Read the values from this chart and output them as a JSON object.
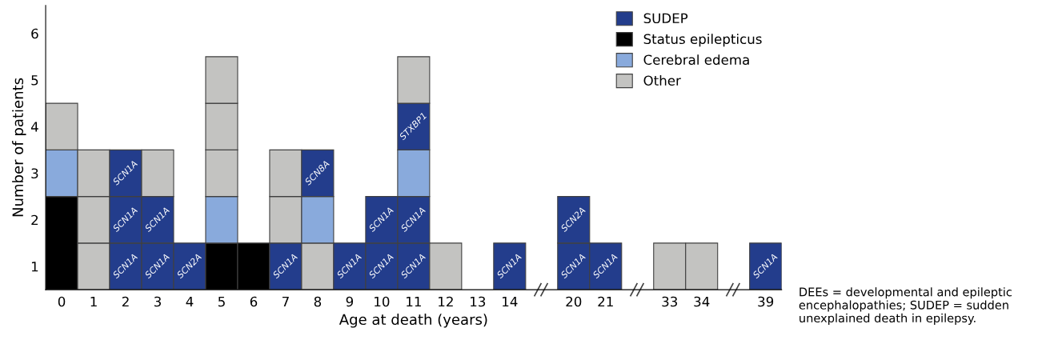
{
  "chart_data": {
    "type": "bar",
    "stacked": true,
    "xlabel": "Age at death (years)",
    "ylabel": "Number of patients",
    "categories": [
      "0",
      "1",
      "2",
      "3",
      "4",
      "5",
      "6",
      "7",
      "8",
      "9",
      "10",
      "11",
      "12",
      "13",
      "14",
      null,
      "20",
      "21",
      null,
      "33",
      "34",
      null,
      "39"
    ],
    "ylim": [
      0,
      6.1
    ],
    "yticks": [
      {
        "value": 0.5,
        "label": "1"
      },
      {
        "value": 1.5,
        "label": "2"
      },
      {
        "value": 2.5,
        "label": "3"
      },
      {
        "value": 3.5,
        "label": "4"
      },
      {
        "value": 4.5,
        "label": "5"
      },
      {
        "value": 5.5,
        "label": "6"
      }
    ],
    "grid": false,
    "legend": "top right",
    "series": [
      {
        "values": [
          2,
          1,
          1,
          1,
          1,
          1,
          1,
          1,
          1,
          1,
          1,
          1,
          1,
          null,
          1,
          null,
          1,
          1,
          null,
          1,
          1,
          null,
          1
        ],
        "colors": [
          "#000000",
          "#c3c3c1",
          "#233d8c",
          "#233d8c",
          "#233d8c",
          "#000000",
          "#000000",
          "#233d8c",
          "#c3c3c1",
          "#233d8c",
          "#233d8c",
          "#233d8c",
          "#c3c3c1",
          null,
          "#233d8c",
          null,
          "#233d8c",
          "#233d8c",
          null,
          "#c3c3c1",
          "#c3c3c1",
          null,
          "#233d8c"
        ],
        "value_labels": [
          null,
          null,
          "SCN1A",
          "SCN1A",
          "SCN2A",
          null,
          null,
          "SCN1A",
          null,
          "SCN1A",
          "SCN1A",
          "SCN1A",
          null,
          null,
          "SCN1A",
          null,
          "SCN1A",
          "SCN1A",
          null,
          null,
          null,
          null,
          "SCN1A"
        ]
      },
      {
        "values": [
          1,
          1,
          1,
          1,
          null,
          1,
          null,
          1,
          1,
          null,
          1,
          1,
          null,
          null,
          null,
          null,
          1,
          null,
          null,
          null,
          null,
          null,
          null
        ],
        "colors": [
          "#89aadc",
          "#c3c3c1",
          "#233d8c",
          "#233d8c",
          null,
          "#89aadc",
          null,
          "#c3c3c1",
          "#89aadc",
          null,
          "#233d8c",
          "#233d8c",
          null,
          null,
          null,
          null,
          "#233d8c",
          null,
          null,
          null,
          null,
          null,
          null
        ],
        "value_labels": [
          null,
          null,
          "SCN1A",
          "SCN1A",
          null,
          null,
          null,
          null,
          null,
          null,
          "SCN1A",
          "SCN1A",
          null,
          null,
          null,
          null,
          "SCN2A",
          null,
          null,
          null,
          null,
          null,
          null
        ]
      },
      {
        "values": [
          1,
          1,
          1,
          1,
          null,
          1,
          null,
          1,
          1,
          null,
          null,
          1,
          null,
          null,
          null,
          null,
          null,
          null,
          null,
          null,
          null,
          null,
          null
        ],
        "colors": [
          "#c3c3c1",
          "#c3c3c1",
          "#233d8c",
          "#c3c3c1",
          null,
          "#c3c3c1",
          null,
          "#c3c3c1",
          "#233d8c",
          null,
          null,
          "#89aadc",
          null,
          null,
          null,
          null,
          null,
          null,
          null,
          null,
          null,
          null,
          null
        ],
        "value_labels": [
          null,
          null,
          "SCN1A",
          null,
          null,
          null,
          null,
          null,
          "SCN8A",
          null,
          null,
          null,
          null,
          null,
          null,
          null,
          null,
          null,
          null,
          null,
          null,
          null,
          null
        ]
      },
      {
        "values": [
          null,
          null,
          null,
          null,
          null,
          1,
          null,
          null,
          null,
          null,
          null,
          1,
          null,
          null,
          null,
          null,
          null,
          null,
          null,
          null,
          null,
          null,
          null
        ],
        "colors": [
          null,
          null,
          null,
          null,
          null,
          "#c3c3c1",
          null,
          null,
          null,
          null,
          null,
          "#233d8c",
          null,
          null,
          null,
          null,
          null,
          null,
          null,
          null,
          null,
          null,
          null
        ],
        "value_labels": [
          null,
          null,
          null,
          null,
          null,
          null,
          null,
          null,
          null,
          null,
          null,
          "STXBP1",
          null,
          null,
          null,
          null,
          null,
          null,
          null,
          null,
          null,
          null,
          null
        ]
      },
      {
        "values": [
          null,
          null,
          null,
          null,
          null,
          1,
          null,
          null,
          null,
          null,
          null,
          1,
          null,
          null,
          null,
          null,
          null,
          null,
          null,
          null,
          null,
          null,
          null
        ],
        "colors": [
          null,
          null,
          null,
          null,
          null,
          "#c3c3c1",
          null,
          null,
          null,
          null,
          null,
          "#c3c3c1",
          null,
          null,
          null,
          null,
          null,
          null,
          null,
          null,
          null,
          null,
          null
        ]
      },
      {
        "name": "SUDEP",
        "color": "#233d8c",
        "values": [
          null,
          null,
          null,
          null,
          null,
          null,
          null,
          null,
          null,
          null,
          null,
          null,
          null,
          null,
          null,
          null,
          null,
          null,
          null,
          null,
          null,
          null,
          null
        ]
      },
      {
        "name": "Status epilepticus",
        "color": "#000000",
        "values": [
          null,
          null,
          null,
          null,
          null,
          null,
          null,
          null,
          null,
          null,
          null,
          null,
          null,
          null,
          null,
          null,
          null,
          null,
          null,
          null,
          null,
          null,
          null
        ]
      },
      {
        "name": "Cerebral edema",
        "color": "#89aadc",
        "values": [
          null,
          null,
          null,
          null,
          null,
          null,
          null,
          null,
          null,
          null,
          null,
          null,
          null,
          null,
          null,
          null,
          null,
          null,
          null,
          null,
          null,
          null,
          null
        ]
      },
      {
        "name": "Other",
        "color": "#c3c3c1",
        "values": [
          null,
          null,
          null,
          null,
          null,
          null,
          null,
          null,
          null,
          null,
          null,
          null,
          null,
          null,
          null,
          null,
          null,
          null,
          null,
          null,
          null,
          null,
          null
        ]
      }
    ],
    "annotations": [
      "DEEs = developmental and epileptic encephalopathies; SUDEP = sudden unexplained death in epilepsy."
    ]
  }
}
